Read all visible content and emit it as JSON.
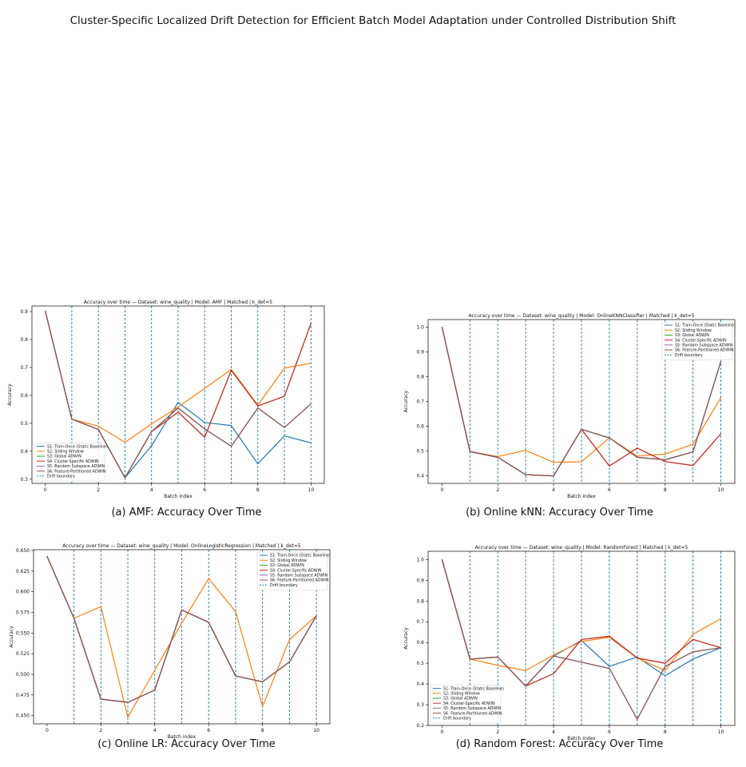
{
  "page": {
    "title": "Cluster-Specific Localized Drift Detection for Efficient Batch Model Adaptation under Controlled Distribution Shift"
  },
  "colors": {
    "S1": "#1f77b4",
    "S2": "#ff7f0e",
    "S3": "#2ca02c",
    "S4": "#d62728",
    "S5": "#9467bd",
    "S6": "#8c564b",
    "drift": "#1f77b4"
  },
  "panels": [
    {
      "caption": "(a) AMF: Accuracy Over Time",
      "legend_position": "lower-left",
      "legend_labels": [
        "S1: Train-Once (Static Baseline)",
        "S2: Sliding Window",
        "S3: Global ADWIN",
        "S4: Cluster-Specific ADWIN",
        "S5: Random Subspace ADWIN",
        "S6: Feature-Partitioned ADWIN",
        "Drift boundary"
      ],
      "chart_data": {
        "type": "line",
        "title": "Accuracy over time — Dataset: wine_quality | Model: AMF | Matched | k_det=5",
        "xlabel": "Batch index",
        "ylabel": "Accuracy",
        "x": [
          0,
          1,
          2,
          3,
          4,
          5,
          6,
          7,
          8,
          9,
          10
        ],
        "xlim": [
          -0.5,
          10.5
        ],
        "ylim": [
          0.285,
          0.92
        ],
        "yticks": [
          0.3,
          0.4,
          0.5,
          0.6,
          0.7,
          0.8,
          0.9
        ],
        "ytick_labels": [
          "0.3",
          "0.4",
          "0.5",
          "0.6",
          "0.7",
          "0.8",
          "0.9"
        ],
        "xticks": [
          0,
          2,
          4,
          6,
          8,
          10
        ],
        "drift_boundaries": [
          1,
          2,
          3,
          4,
          5,
          6,
          7,
          8,
          9,
          10
        ],
        "grid": false,
        "series": [
          {
            "name": "S1: Train-Once (Static Baseline)",
            "key": "S1",
            "values": [
              0.902,
              0.515,
              0.478,
              0.305,
              0.42,
              0.575,
              0.503,
              0.492,
              0.355,
              0.455,
              0.43
            ]
          },
          {
            "name": "S2: Sliding Window",
            "key": "S2",
            "values": [
              0.902,
              0.515,
              0.49,
              0.432,
              0.498,
              0.558,
              0.625,
              0.693,
              0.565,
              0.698,
              0.715
            ]
          },
          {
            "name": "S3: Global ADWIN",
            "key": "S3",
            "values": [
              0.902,
              0.515,
              0.478,
              0.305,
              0.47,
              0.54,
              0.45,
              0.69,
              0.562,
              0.597,
              0.858
            ]
          },
          {
            "name": "S4: Cluster-Specific ADWIN",
            "key": "S4",
            "values": [
              0.902,
              0.515,
              0.478,
              0.305,
              0.47,
              0.54,
              0.45,
              0.69,
              0.562,
              0.597,
              0.858
            ]
          },
          {
            "name": "S5: Random Subspace ADWIN",
            "key": "S5",
            "values": [
              0.902,
              0.515,
              0.478,
              0.305,
              0.47,
              0.555,
              0.48,
              0.418,
              0.555,
              0.485,
              0.57
            ]
          },
          {
            "name": "S6: Feature-Partitioned ADWIN",
            "key": "S6",
            "values": [
              0.902,
              0.515,
              0.478,
              0.305,
              0.47,
              0.555,
              0.48,
              0.418,
              0.555,
              0.485,
              0.57
            ]
          }
        ]
      }
    },
    {
      "caption": "(b) Online kNN: Accuracy Over Time",
      "legend_position": "top-right",
      "legend_labels": [
        "S1: Train-Once (Static Baseline)",
        "S2: Sliding Window",
        "S3: Global ADWIN",
        "S4: Cluster-Specific ADWIN",
        "S5: Random Subspace ADWIN",
        "S6: Feature-Partitioned ADWIN",
        "Drift boundary"
      ],
      "chart_data": {
        "type": "line",
        "title": "Accuracy over time — Dataset: wine_quality | Model: OnlineKNNClassifier | Matched | k_det=5",
        "xlabel": "Batch index",
        "ylabel": "Accuracy",
        "x": [
          0,
          1,
          2,
          3,
          4,
          5,
          6,
          7,
          8,
          9,
          10
        ],
        "xlim": [
          -0.5,
          10.5
        ],
        "ylim": [
          0.37,
          1.03
        ],
        "yticks": [
          0.4,
          0.5,
          0.6,
          0.7,
          0.8,
          0.9,
          1.0
        ],
        "ytick_labels": [
          "0.4",
          "0.5",
          "0.6",
          "0.7",
          "0.8",
          "0.9",
          "1.0"
        ],
        "xticks": [
          0,
          2,
          4,
          6,
          8,
          10
        ],
        "drift_boundaries": [
          1,
          2,
          3,
          4,
          5,
          6,
          7,
          8,
          9,
          10
        ],
        "grid": false,
        "series": [
          {
            "name": "S1: Train-Once (Static Baseline)",
            "key": "S1",
            "values": [
              1.0,
              0.498,
              0.475,
              0.405,
              0.4,
              0.588,
              0.553,
              0.475,
              0.465,
              0.497,
              0.862
            ]
          },
          {
            "name": "S2: Sliding Window",
            "key": "S2",
            "values": [
              1.0,
              0.498,
              0.478,
              0.503,
              0.455,
              0.457,
              0.553,
              0.48,
              0.488,
              0.528,
              0.715
            ]
          },
          {
            "name": "S3: Global ADWIN",
            "key": "S3",
            "values": [
              1.0,
              0.498,
              0.475,
              0.405,
              0.4,
              0.588,
              0.44,
              0.512,
              0.458,
              0.442,
              0.57
            ]
          },
          {
            "name": "S4: Cluster-Specific ADWIN",
            "key": "S4",
            "values": [
              1.0,
              0.498,
              0.475,
              0.405,
              0.4,
              0.588,
              0.44,
              0.512,
              0.458,
              0.442,
              0.57
            ]
          },
          {
            "name": "S5: Random Subspace ADWIN",
            "key": "S5",
            "values": [
              1.0,
              0.498,
              0.475,
              0.405,
              0.4,
              0.588,
              0.553,
              0.475,
              0.465,
              0.497,
              0.862
            ]
          },
          {
            "name": "S6: Feature-Partitioned ADWIN",
            "key": "S6",
            "values": [
              1.0,
              0.498,
              0.475,
              0.405,
              0.4,
              0.588,
              0.553,
              0.475,
              0.465,
              0.497,
              0.862
            ]
          }
        ]
      }
    },
    {
      "caption": "(c) Online LR: Accuracy Over Time",
      "legend_position": "top-right",
      "legend_labels": [
        "S1: Train-Once (Static Baseline)",
        "S2: Sliding Window",
        "S3: Global ADWIN",
        "S4: Cluster-Specific ADWIN",
        "S5: Random Subspace ADWIN",
        "S6: Feature-Partitioned ADWIN",
        "Drift boundary"
      ],
      "chart_data": {
        "type": "line",
        "title": "Accuracy over time — Dataset: wine_quality | Model: OnlineLogisticRegression | Matched | k_det=5",
        "xlabel": "Batch index",
        "ylabel": "Accuracy",
        "x": [
          0,
          1,
          2,
          3,
          4,
          5,
          6,
          7,
          8,
          9,
          10
        ],
        "xlim": [
          -0.5,
          10.5
        ],
        "ylim": [
          0.44,
          0.651
        ],
        "yticks": [
          0.45,
          0.475,
          0.5,
          0.525,
          0.55,
          0.575,
          0.6,
          0.625,
          0.65
        ],
        "ytick_labels": [
          "0.450",
          "0.475",
          "0.500",
          "0.525",
          "0.550",
          "0.575",
          "0.600",
          "0.625",
          "0.650"
        ],
        "xticks": [
          0,
          2,
          4,
          6,
          8,
          10
        ],
        "drift_boundaries": [
          1,
          2,
          3,
          4,
          5,
          6,
          7,
          8,
          9,
          10
        ],
        "grid": false,
        "series": [
          {
            "name": "S1: Train-Once (Static Baseline)",
            "key": "S1",
            "values": [
              0.643,
              0.568,
              0.47,
              0.466,
              0.481,
              0.578,
              0.563,
              0.498,
              0.491,
              0.515,
              0.571
            ]
          },
          {
            "name": "S2: Sliding Window",
            "key": "S2",
            "values": [
              0.643,
              0.568,
              0.582,
              0.448,
              0.505,
              0.562,
              0.616,
              0.576,
              0.461,
              0.542,
              0.571
            ]
          },
          {
            "name": "S3: Global ADWIN",
            "key": "S3",
            "values": [
              0.643,
              0.568,
              0.47,
              0.466,
              0.481,
              0.578,
              0.563,
              0.498,
              0.491,
              0.515,
              0.571
            ]
          },
          {
            "name": "S4: Cluster-Specific ADWIN",
            "key": "S4",
            "values": [
              0.643,
              0.568,
              0.47,
              0.466,
              0.481,
              0.578,
              0.563,
              0.498,
              0.491,
              0.515,
              0.571
            ]
          },
          {
            "name": "S5: Random Subspace ADWIN",
            "key": "S5",
            "values": [
              0.643,
              0.568,
              0.47,
              0.466,
              0.481,
              0.578,
              0.563,
              0.498,
              0.491,
              0.515,
              0.571
            ]
          },
          {
            "name": "S6: Feature-Partitioned ADWIN",
            "key": "S6",
            "values": [
              0.643,
              0.568,
              0.47,
              0.466,
              0.481,
              0.578,
              0.563,
              0.498,
              0.491,
              0.515,
              0.571
            ]
          }
        ]
      }
    },
    {
      "caption": "(d) Random Forest: Accuracy Over Time",
      "legend_position": "lower-left",
      "legend_labels": [
        "S1: Train-Once (Static Baseline)",
        "S2: Sliding Window",
        "S3: Global ADWIN",
        "S4: Cluster-Specific ADWIN",
        "S5: Random Subspace ADWIN",
        "S6: Feature-Partitioned ADWIN",
        "Drift boundary"
      ],
      "chart_data": {
        "type": "line",
        "title": "Accuracy over time — Dataset: wine_quality | Model: RandomForest | Matched | k_det=5",
        "xlabel": "Batch index",
        "ylabel": "Accuracy",
        "x": [
          0,
          1,
          2,
          3,
          4,
          5,
          6,
          7,
          8,
          9,
          10
        ],
        "xlim": [
          -0.5,
          10.5
        ],
        "ylim": [
          0.2,
          1.04
        ],
        "yticks": [
          0.2,
          0.3,
          0.4,
          0.5,
          0.6,
          0.7,
          0.8,
          0.9,
          1.0
        ],
        "ytick_labels": [
          "0.2",
          "0.3",
          "0.4",
          "0.5",
          "0.6",
          "0.7",
          "0.8",
          "0.9",
          "1.0"
        ],
        "xticks": [
          0,
          2,
          4,
          6,
          8,
          10
        ],
        "drift_boundaries": [
          1,
          2,
          3,
          4,
          5,
          6,
          7,
          8,
          9,
          10
        ],
        "grid": false,
        "series": [
          {
            "name": "S1: Train-Once (Static Baseline)",
            "key": "S1",
            "values": [
              1.0,
              0.52,
              0.53,
              0.39,
              0.535,
              0.61,
              0.485,
              0.53,
              0.44,
              0.52,
              0.575
            ]
          },
          {
            "name": "S2: Sliding Window",
            "key": "S2",
            "values": [
              1.0,
              0.52,
              0.49,
              0.465,
              0.54,
              0.605,
              0.625,
              0.525,
              0.465,
              0.64,
              0.715
            ]
          },
          {
            "name": "S3: Global ADWIN",
            "key": "S3",
            "values": [
              1.0,
              0.52,
              0.53,
              0.39,
              0.45,
              0.615,
              0.63,
              0.525,
              0.5,
              0.615,
              0.575
            ]
          },
          {
            "name": "S4: Cluster-Specific ADWIN",
            "key": "S4",
            "values": [
              1.0,
              0.52,
              0.53,
              0.39,
              0.45,
              0.615,
              0.63,
              0.525,
              0.5,
              0.615,
              0.575
            ]
          },
          {
            "name": "S5: Random Subspace ADWIN",
            "key": "S5",
            "values": [
              1.0,
              0.52,
              0.53,
              0.39,
              0.535,
              0.505,
              0.475,
              0.23,
              0.485,
              0.555,
              0.575
            ]
          },
          {
            "name": "S6: Feature-Partitioned ADWIN",
            "key": "S6",
            "values": [
              1.0,
              0.52,
              0.53,
              0.39,
              0.535,
              0.505,
              0.475,
              0.23,
              0.485,
              0.555,
              0.575
            ]
          }
        ]
      }
    }
  ]
}
